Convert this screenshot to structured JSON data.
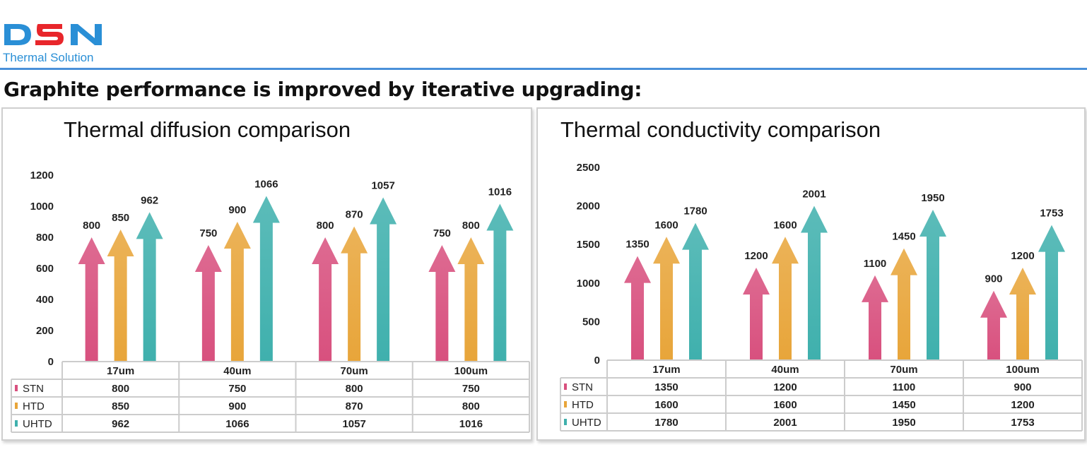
{
  "brand": {
    "logo_letters": "DSN",
    "tagline": "Thermal Solution",
    "color": "#2a8fd6"
  },
  "headline": "Graphite performance is improved by iterative upgrading:",
  "colors": {
    "STN": "#d8507e",
    "HTD": "#e8a53a",
    "UHTD": "#3fb0ad",
    "grid": "#cccccc"
  },
  "chart_data": [
    {
      "type": "bar",
      "title": "Thermal diffusion comparison",
      "categories": [
        "17um",
        "40um",
        "70um",
        "100um"
      ],
      "series": [
        {
          "name": "STN",
          "values": [
            800,
            750,
            800,
            750
          ]
        },
        {
          "name": "HTD",
          "values": [
            850,
            900,
            870,
            800
          ]
        },
        {
          "name": "UHTD",
          "values": [
            962,
            1066,
            1057,
            1016
          ]
        }
      ],
      "yticks": [
        0,
        200,
        400,
        600,
        800,
        1000,
        1200
      ],
      "ylim": [
        0,
        1200
      ],
      "xlabel": "",
      "ylabel": "",
      "legend": "data-table"
    },
    {
      "type": "bar",
      "title": "Thermal conductivity comparison",
      "categories": [
        "17um",
        "40um",
        "70um",
        "100um"
      ],
      "series": [
        {
          "name": "STN",
          "values": [
            1350,
            1200,
            1100,
            900
          ]
        },
        {
          "name": "HTD",
          "values": [
            1600,
            1600,
            1450,
            1200
          ]
        },
        {
          "name": "UHTD",
          "values": [
            1780,
            2001,
            1950,
            1753
          ]
        }
      ],
      "yticks": [
        0,
        500,
        1000,
        1500,
        2000,
        2500
      ],
      "ylim": [
        0,
        2500
      ],
      "xlabel": "",
      "ylabel": "",
      "legend": "data-table"
    }
  ]
}
